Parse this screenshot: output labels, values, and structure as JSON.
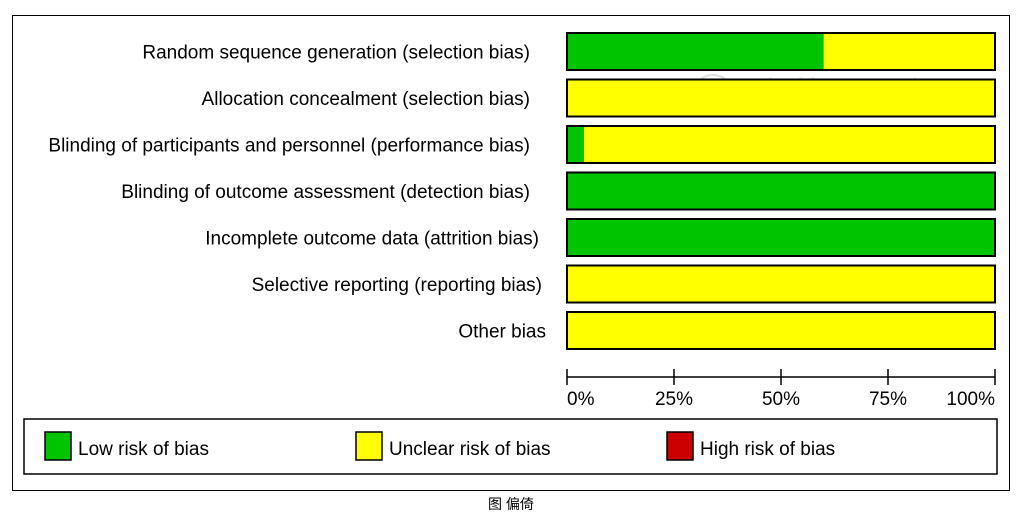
{
  "chart_data": {
    "type": "bar",
    "orientation": "horizontal-stacked-percent",
    "categories": [
      "Random sequence generation (selection bias)",
      "Allocation concealment (selection bias)",
      "Blinding of participants and personnel (performance bias)",
      "Blinding of outcome assessment (detection bias)",
      "Incomplete outcome data (attrition bias)",
      "Selective reporting (reporting bias)",
      "Other bias"
    ],
    "series": [
      {
        "name": "Low risk of bias",
        "color": "#00c400",
        "values": [
          60,
          0,
          4,
          100,
          100,
          0,
          0
        ]
      },
      {
        "name": "Unclear risk of bias",
        "color": "#ffff00",
        "values": [
          40,
          100,
          96,
          0,
          0,
          100,
          100
        ]
      },
      {
        "name": "High risk of bias",
        "color": "#cc0000",
        "values": [
          0,
          0,
          0,
          0,
          0,
          0,
          0
        ]
      }
    ],
    "xlim": [
      0,
      100
    ],
    "xticks": [
      "0%",
      "25%",
      "50%",
      "75%",
      "100%"
    ],
    "legend": "bottom",
    "grid": false
  },
  "watermark": "中華醫學會",
  "caption": "图 偏倚"
}
